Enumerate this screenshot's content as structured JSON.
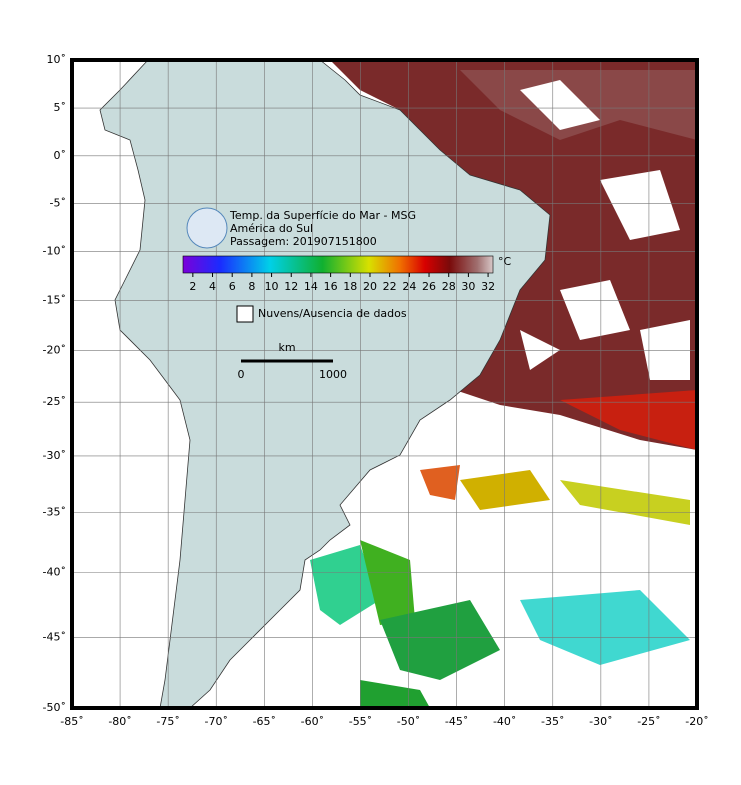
{
  "title_lines": [
    "Temp. da Superfície do Mar - MSG",
    "América do Sul",
    "Passagem: 201907151800"
  ],
  "map": {
    "xlim": [
      -85,
      -20
    ],
    "ylim": [
      -50,
      10
    ],
    "projection": "mercator",
    "grid": true,
    "xticks": [
      {
        "value": -85,
        "label": "-85˚"
      },
      {
        "value": -80,
        "label": "-80˚"
      },
      {
        "value": -75,
        "label": "-75˚"
      },
      {
        "value": -70,
        "label": "-70˚"
      },
      {
        "value": -65,
        "label": "-65˚"
      },
      {
        "value": -60,
        "label": "-60˚"
      },
      {
        "value": -55,
        "label": "-55˚"
      },
      {
        "value": -50,
        "label": "-50˚"
      },
      {
        "value": -45,
        "label": "-45˚"
      },
      {
        "value": -40,
        "label": "-40˚"
      },
      {
        "value": -35,
        "label": "-35˚"
      },
      {
        "value": -30,
        "label": "-30˚"
      },
      {
        "value": -25,
        "label": "-25˚"
      },
      {
        "value": -20,
        "label": "-20˚"
      }
    ],
    "yticks": [
      {
        "value": 10,
        "label": "10˚"
      },
      {
        "value": 5,
        "label": "5˚"
      },
      {
        "value": 0,
        "label": "0˚"
      },
      {
        "value": -5,
        "label": "-5˚"
      },
      {
        "value": -10,
        "label": "-10˚"
      },
      {
        "value": -15,
        "label": "-15˚"
      },
      {
        "value": -20,
        "label": "-20˚"
      },
      {
        "value": -25,
        "label": "-25˚"
      },
      {
        "value": -30,
        "label": "-30˚"
      },
      {
        "value": -35,
        "label": "-35˚"
      },
      {
        "value": -40,
        "label": "-40˚"
      },
      {
        "value": -45,
        "label": "-45˚"
      },
      {
        "value": -50,
        "label": "-50˚"
      }
    ]
  },
  "colorbar": {
    "lim": [
      1,
      32.5
    ],
    "ticks": [
      2,
      4,
      6,
      8,
      10,
      12,
      14,
      16,
      18,
      20,
      22,
      24,
      26,
      28,
      30,
      32
    ],
    "unit": "°C"
  },
  "legend": "Nuvens/Ausencia de dados",
  "scale_bar": {
    "unit": "km",
    "start": "0",
    "end": "1000"
  }
}
